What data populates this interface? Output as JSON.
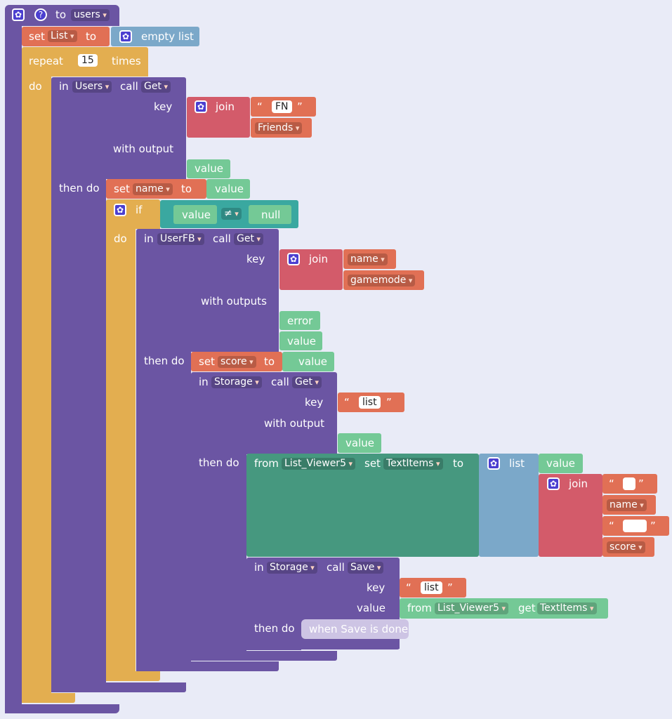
{
  "procedure": {
    "to_label": "to",
    "name": "users",
    "help_glyph": "?"
  },
  "gear_glyph": "✿",
  "quote_open": "“",
  "quote_close": "”",
  "set1": {
    "set": "set",
    "var": "List",
    "to": "to",
    "value": "empty list"
  },
  "repeat": {
    "label": "repeat",
    "count": "15",
    "times": "times",
    "do": "do"
  },
  "users_call": {
    "in": "in",
    "component": "Users",
    "call": "call",
    "method": "Get",
    "key": "key",
    "join": "join",
    "fn": "FN",
    "friends": "Friends",
    "with_output": "with output",
    "value": "value",
    "then_do": "then do"
  },
  "set2": {
    "set": "set",
    "var": "name",
    "to": "to",
    "value": "value"
  },
  "if_block": {
    "if": "if",
    "left": "value",
    "op": "≠",
    "right": "null",
    "do": "do"
  },
  "userfb_call": {
    "in": "in",
    "component": "UserFB",
    "call": "call",
    "method": "Get",
    "key": "key",
    "join": "join",
    "name": "name",
    "gamemode": "gamemode",
    "with_outputs": "with outputs",
    "error": "error",
    "value": "value",
    "then_do": "then do"
  },
  "set3": {
    "set": "set",
    "var": "score",
    "to": "to",
    "value": "value"
  },
  "storage_get": {
    "in": "in",
    "component": "Storage",
    "call": "call",
    "method": "Get",
    "key": "key",
    "key_value": "list",
    "with_output": "with output",
    "value": "value",
    "then_do": "then do"
  },
  "from_set": {
    "from": "from",
    "component": "List_Viewer5",
    "set": "set",
    "prop": "TextItems",
    "to": "to",
    "list": "list",
    "value": "value",
    "join": "join",
    "name": "name",
    "score": "score"
  },
  "storage_save": {
    "in": "in",
    "component": "Storage",
    "call": "call",
    "method": "Save",
    "key": "key",
    "key_value": "list",
    "value": "value",
    "from": "from",
    "component2": "List_Viewer5",
    "get": "get",
    "prop": "TextItems",
    "then_do": "then do",
    "when_done": "when Save is done"
  }
}
